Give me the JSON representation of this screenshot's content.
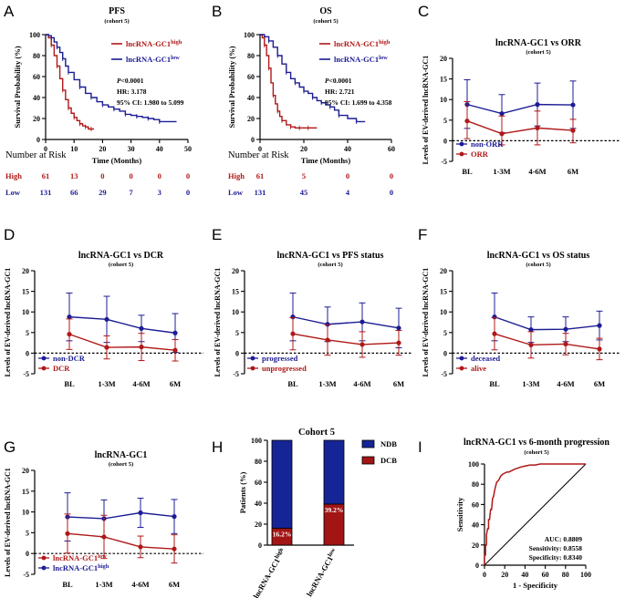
{
  "colors": {
    "red": "#b01818",
    "blue": "#1c1c94",
    "dcb": "#a31414",
    "ndb": "#152596",
    "black": "#000000"
  },
  "chart_data": [
    {
      "letter": "A",
      "type": "line",
      "subtype": "kaplan-meier",
      "title": "PFS",
      "subtitle": "(cohort 5)",
      "xlabel": "Time (Months)",
      "ylabel": "Survival Probability (%)",
      "xlim": [
        0,
        50
      ],
      "ylim": [
        0,
        100
      ],
      "xticks": [
        "0",
        "10",
        "20",
        "30",
        "40",
        "50"
      ],
      "yticks": [
        "0",
        "20",
        "40",
        "60",
        "80",
        "100"
      ],
      "series": [
        {
          "name": "lncRNA-GC1",
          "sup": "high",
          "color": "#b01818",
          "x": [
            0,
            1,
            2,
            3,
            4,
            5,
            6,
            7,
            8,
            9,
            10,
            11,
            12,
            13,
            14,
            15,
            16,
            17
          ],
          "y": [
            100,
            97,
            90,
            80,
            70,
            58,
            47,
            38,
            30,
            25,
            21,
            18,
            15,
            13,
            12,
            10,
            10,
            10
          ]
        },
        {
          "name": "lncRNA-GC1",
          "sup": "low",
          "color": "#1c1c94",
          "x": [
            0,
            1,
            2,
            3,
            4,
            5,
            6,
            7,
            8,
            10,
            12,
            14,
            16,
            18,
            20,
            22,
            24,
            26,
            28,
            30,
            32,
            34,
            36,
            38,
            40,
            46
          ],
          "y": [
            100,
            99,
            97,
            93,
            88,
            83,
            77,
            70,
            64,
            57,
            50,
            44,
            40,
            36,
            33,
            31,
            29,
            27,
            24,
            23,
            22,
            21,
            20,
            19,
            17,
            17
          ]
        }
      ],
      "stats": {
        "p": "<0.0001",
        "hr": "HR: 3.178",
        "ci": "95% CI: 1.980 to 5.099"
      },
      "risk": {
        "title": "Number at Risk",
        "rows": [
          {
            "label": "High",
            "color": "#b01818",
            "values": [
              "61",
              "13",
              "0",
              "0",
              "0",
              "0"
            ]
          },
          {
            "label": "Low",
            "color": "#1c1c94",
            "values": [
              "131",
              "66",
              "29",
              "7",
              "3",
              "0"
            ]
          }
        ]
      }
    },
    {
      "letter": "B",
      "type": "line",
      "subtype": "kaplan-meier",
      "title": "OS",
      "subtitle": "(cohort 5)",
      "xlabel": "Time (Months)",
      "ylabel": "Survival Probability (%)",
      "xlim": [
        0,
        60
      ],
      "ylim": [
        0,
        100
      ],
      "xticks": [
        "0",
        "20",
        "40",
        "60"
      ],
      "yticks": [
        "0",
        "20",
        "40",
        "60",
        "80",
        "100"
      ],
      "series": [
        {
          "name": "lncRNA-GC1",
          "sup": "high",
          "color": "#b01818",
          "x": [
            0,
            1,
            2,
            3,
            4,
            5,
            6,
            7,
            8,
            9,
            10,
            12,
            14,
            16,
            18,
            20,
            22,
            26
          ],
          "y": [
            100,
            97,
            90,
            80,
            68,
            54,
            42,
            34,
            27,
            22,
            18,
            14,
            12,
            11,
            11,
            11,
            11,
            11
          ]
        },
        {
          "name": "lncRNA-GC1",
          "sup": "low",
          "color": "#1c1c94",
          "x": [
            0,
            2,
            4,
            6,
            8,
            10,
            12,
            14,
            16,
            18,
            20,
            22,
            24,
            26,
            28,
            30,
            32,
            34,
            36,
            40,
            44,
            48
          ],
          "y": [
            100,
            98,
            94,
            88,
            80,
            72,
            64,
            58,
            54,
            50,
            46,
            44,
            40,
            37,
            35,
            33,
            31,
            28,
            23,
            20,
            17,
            17
          ]
        }
      ],
      "stats": {
        "p": "<0.0001",
        "hr": "HR: 2.721",
        "ci": "95% CI: 1.699 to 4.358"
      },
      "risk": {
        "title": "Number at Risk",
        "rows": [
          {
            "label": "High",
            "color": "#b01818",
            "values": [
              "61",
              "5",
              "0",
              "0"
            ]
          },
          {
            "label": "Low",
            "color": "#1c1c94",
            "values": [
              "131",
              "45",
              "4",
              "0"
            ]
          }
        ]
      }
    },
    {
      "letter": "C",
      "type": "line",
      "subtype": "errorbar",
      "title": "lncRNA-GC1 vs ORR",
      "subtitle": "(cohort 5)",
      "ylabel": "Levels of EV-derived lncRNA-GC1",
      "categories": [
        "BL",
        "1-3M",
        "4-6M",
        "6M"
      ],
      "ylim": [
        -5,
        20
      ],
      "yticks": [
        "-5",
        "0",
        "5",
        "10",
        "15",
        "20"
      ],
      "series": [
        {
          "name": "non-ORR",
          "color": "#1c1c94",
          "values": [
            8.8,
            6.6,
            8.8,
            8.7
          ],
          "upper": [
            14.8,
            11.2,
            14.0,
            14.5
          ],
          "lower": [
            3.0,
            2.0,
            3.6,
            3.0
          ]
        },
        {
          "name": "ORR",
          "color": "#b01818",
          "values": [
            4.8,
            1.7,
            3.1,
            2.5
          ],
          "upper": [
            9.5,
            6.0,
            7.2,
            5.2
          ],
          "lower": [
            0.5,
            -1.0,
            -1.0,
            -0.5
          ]
        }
      ]
    },
    {
      "letter": "D",
      "type": "line",
      "subtype": "errorbar",
      "title": "lncRNA-GC1 vs DCR",
      "subtitle": "(cohort 5)",
      "ylabel": "Levels of EV-derived lncRNA-GC1",
      "categories": [
        "BL",
        "1-3M",
        "4-6M",
        "6M"
      ],
      "ylim": [
        -5,
        20
      ],
      "yticks": [
        "-5",
        "0",
        "5",
        "10",
        "15",
        "20"
      ],
      "series": [
        {
          "name": "non-DCR",
          "color": "#1c1c94",
          "values": [
            8.8,
            8.2,
            6.0,
            4.9
          ],
          "upper": [
            14.6,
            13.8,
            9.2,
            9.6
          ],
          "lower": [
            3.0,
            2.6,
            2.8,
            0.2
          ]
        },
        {
          "name": "DCR",
          "color": "#b01818",
          "values": [
            4.6,
            1.4,
            1.5,
            0.7
          ],
          "upper": [
            8.3,
            4.2,
            4.8,
            3.3
          ],
          "lower": [
            0.9,
            -1.4,
            -1.8,
            -1.9
          ]
        }
      ]
    },
    {
      "letter": "E",
      "type": "line",
      "subtype": "errorbar",
      "title": "lncRNA-GC1 vs PFS status",
      "subtitle": "(cohort 5)",
      "ylabel": "Levels of EV-derived lncRNA-GC1",
      "categories": [
        "BL",
        "1-3M",
        "4-6M",
        "6M"
      ],
      "ylim": [
        -5,
        20
      ],
      "yticks": [
        "-5",
        "0",
        "5",
        "10",
        "15",
        "20"
      ],
      "series": [
        {
          "name": "progressed",
          "color": "#1c1c94",
          "values": [
            8.8,
            7.0,
            7.6,
            6.1
          ],
          "upper": [
            14.6,
            11.2,
            12.2,
            10.9
          ],
          "lower": [
            3.0,
            2.8,
            3.0,
            1.3
          ]
        },
        {
          "name": "unprogressed",
          "color": "#b01818",
          "values": [
            4.7,
            3.2,
            2.1,
            2.5
          ],
          "upper": [
            8.6,
            6.9,
            5.2,
            5.5
          ],
          "lower": [
            0.8,
            -0.5,
            -1.0,
            -0.5
          ]
        }
      ]
    },
    {
      "letter": "F",
      "type": "line",
      "subtype": "errorbar",
      "title": "lncRNA-GC1 vs OS status",
      "subtitle": "(cohort 5)",
      "ylabel": "Levels of EV-derived lncRNA-GC1",
      "categories": [
        "BL",
        "1-3M",
        "4-6M",
        "6M"
      ],
      "ylim": [
        -5,
        20
      ],
      "yticks": [
        "-5",
        "0",
        "5",
        "10",
        "15",
        "20"
      ],
      "series": [
        {
          "name": "deceased",
          "color": "#1c1c94",
          "values": [
            8.8,
            5.7,
            5.8,
            6.7
          ],
          "upper": [
            14.6,
            8.8,
            8.8,
            10.2
          ],
          "lower": [
            3.0,
            2.6,
            2.8,
            3.2
          ]
        },
        {
          "name": "alive",
          "color": "#b01818",
          "values": [
            4.7,
            2.0,
            2.2,
            1.0
          ],
          "upper": [
            8.6,
            5.2,
            4.8,
            3.6
          ],
          "lower": [
            0.8,
            -1.2,
            -0.4,
            -1.6
          ]
        }
      ]
    },
    {
      "letter": "G",
      "type": "line",
      "subtype": "errorbar",
      "title": "lncRNA-GC1",
      "subtitle": "(cohort 5)",
      "ylabel": "Levels of EV-derived lncRNA-GC1",
      "categories": [
        "BL",
        "1-3M",
        "4-6M",
        "6M"
      ],
      "ylim": [
        -5,
        20
      ],
      "yticks": [
        "-5",
        "0",
        "5",
        "10",
        "15",
        "20"
      ],
      "series": [
        {
          "name": "lncRNA-GC1",
          "sup": "high",
          "color": "#1c1c94",
          "values": [
            8.8,
            8.4,
            9.8,
            8.9
          ],
          "upper": [
            14.6,
            12.9,
            13.3,
            13.0
          ],
          "lower": [
            3.0,
            3.9,
            6.3,
            4.8
          ]
        },
        {
          "name": "lncRNA-GC1",
          "sup": "low",
          "color": "#b01818",
          "values": [
            4.8,
            4.0,
            1.6,
            1.1
          ],
          "upper": [
            9.5,
            9.2,
            4.2,
            4.5
          ],
          "lower": [
            0.1,
            -1.2,
            -1.0,
            -2.3
          ]
        }
      ],
      "legend_order": [
        1,
        0
      ]
    },
    {
      "letter": "H",
      "type": "bar",
      "subtype": "stacked-percent",
      "title": "Cohort 5",
      "ylabel": "Patients (%)",
      "ylim": [
        0,
        100
      ],
      "yticks": [
        "0",
        "20",
        "40",
        "60",
        "80",
        "100"
      ],
      "categories": [
        {
          "name": "lncRNA-GC1",
          "sup": "high"
        },
        {
          "name": "lncRNA-GC1",
          "sup": "low"
        }
      ],
      "series": [
        {
          "name": "DCB",
          "color": "#a31414",
          "values": [
            16.2,
            39.2
          ]
        },
        {
          "name": "NDB",
          "color": "#152596",
          "values": [
            83.8,
            60.8
          ]
        }
      ],
      "bar_labels": [
        "16.2%",
        "39.2%"
      ],
      "legend_order": [
        1,
        0
      ]
    },
    {
      "letter": "I",
      "type": "line",
      "subtype": "roc",
      "title": "lncRNA-GC1 vs 6-month progression",
      "subtitle": "(cohort 5)",
      "xlabel": "1 - Specificity",
      "ylabel": "Sensitivity",
      "xlim": [
        0,
        100
      ],
      "ylim": [
        0,
        100
      ],
      "xticks": [
        "0",
        "20",
        "40",
        "60",
        "80",
        "100"
      ],
      "yticks": [
        "0",
        "20",
        "40",
        "60",
        "80",
        "100"
      ],
      "x": [
        0,
        0,
        1,
        1,
        2,
        2,
        3,
        4,
        4,
        5,
        6,
        7,
        8,
        9,
        10,
        11,
        12,
        14,
        15,
        16,
        18,
        20,
        22,
        24,
        26,
        28,
        30,
        33,
        36,
        40,
        45,
        50,
        55,
        60,
        70,
        80,
        90,
        100
      ],
      "y": [
        0,
        10,
        10,
        20,
        20,
        30,
        36,
        36,
        45,
        45,
        55,
        55,
        66,
        68,
        74,
        78,
        82,
        84,
        86,
        88,
        90,
        91,
        92,
        92,
        93,
        94,
        95,
        96,
        97,
        98,
        99,
        99,
        100,
        100,
        100,
        100,
        100,
        100
      ],
      "stats": {
        "auc": "AUC: 0.8809",
        "sens": "Sensitivity: 0.8558",
        "spec": "Specificity: 0.8340"
      }
    }
  ]
}
